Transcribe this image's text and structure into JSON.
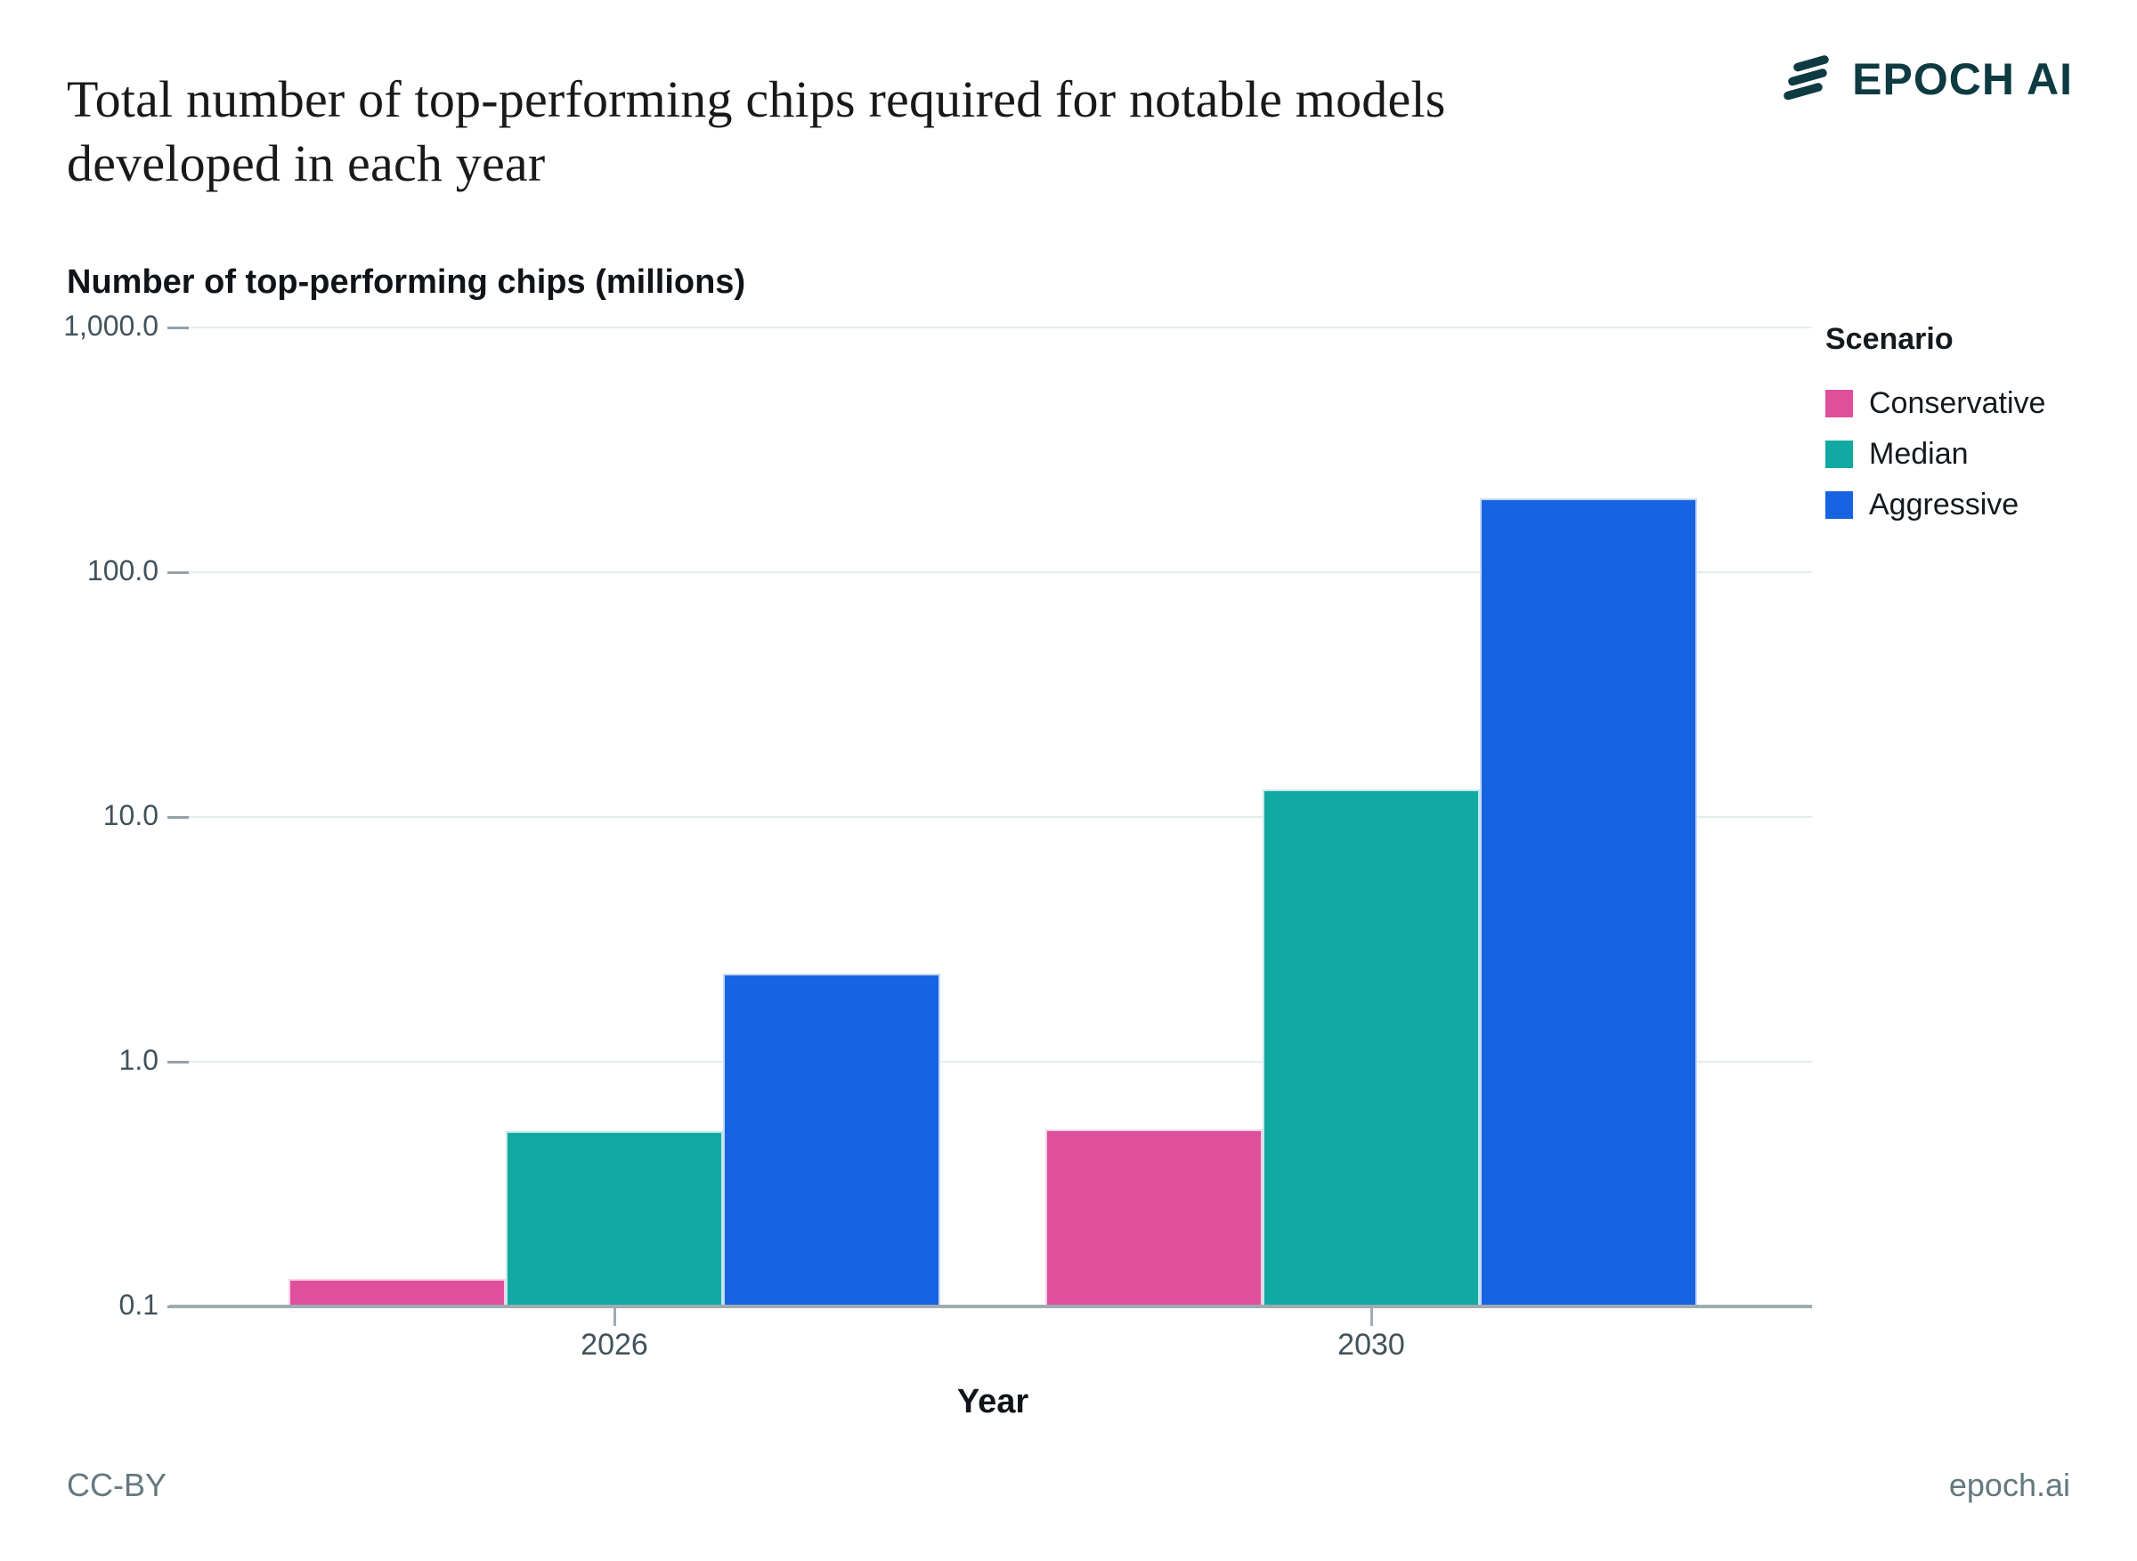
{
  "header": {
    "title_lines": [
      "Total number of top-performing chips required for notable models",
      "developed in each year"
    ],
    "brand": "EPOCH AI",
    "brand_color": "#0e3a41"
  },
  "footer": {
    "license": "CC-BY",
    "site": "epoch.ai"
  },
  "chart_data": {
    "type": "bar",
    "title": "Total number of top-performing chips required for notable models developed in each year",
    "ylabel": "Number of top-performing chips (millions)",
    "xlabel": "Year",
    "yscale": "log",
    "ylim": [
      0.1,
      1000
    ],
    "yticks": [
      "1,000.0",
      "100.0",
      "10.0",
      "1.0",
      "0.1"
    ],
    "ytick_values": [
      1000,
      100,
      10,
      1,
      0.1
    ],
    "grid": "horizontal",
    "categories": [
      "2026",
      "2030"
    ],
    "series": [
      {
        "name": "Conservative",
        "color": "#de4f9c",
        "values": [
          0.13,
          0.53
        ]
      },
      {
        "name": "Median",
        "color": "#12a9a3",
        "values": [
          0.52,
          13
        ]
      },
      {
        "name": "Aggressive",
        "color": "#1763e2",
        "values": [
          2.3,
          200
        ]
      }
    ],
    "legend_title": "Scenario",
    "legend_position": "right",
    "unit": "millions of chips"
  }
}
